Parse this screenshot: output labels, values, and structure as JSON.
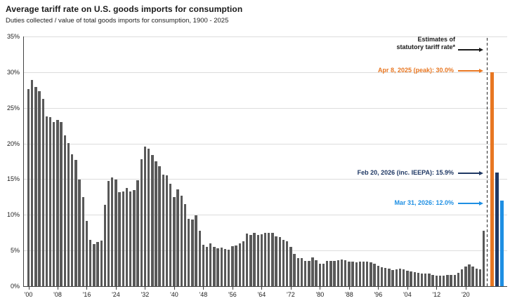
{
  "header": {
    "title": "Average tariff rate on U.S. goods imports for consumption",
    "subtitle": "Duties collected / value of total goods imports for consumption, 1900 - 2025"
  },
  "annotations": {
    "estimates_line1": "Estimates of",
    "estimates_line2": "statutory tariff rate*"
  },
  "colors": {
    "bar_gray": "#595959",
    "estimate_orange": "#E87722",
    "estimate_navy": "#1F3864",
    "estimate_blue": "#1E8FE3",
    "gridline": "#dcdcdc",
    "axis": "#444444"
  },
  "chart_data": {
    "type": "bar",
    "title": "Average tariff rate on U.S. goods imports for consumption",
    "subtitle": "Duties collected / value of total goods imports for consumption, 1900 - 2025",
    "unit": "%",
    "ylim": [
      0,
      35
    ],
    "grid": true,
    "start_year": 1900,
    "end_year": 2025,
    "y_ticks": [
      "0%",
      "5%",
      "10%",
      "15%",
      "20%",
      "25%",
      "30%",
      "35%"
    ],
    "x_tick_labels": [
      "'00",
      "'08",
      "'16",
      "'24",
      "'32",
      "'40",
      "'48",
      "'56",
      "'64",
      "'72",
      "'80",
      "'88",
      "'96",
      "'04",
      "'12",
      "'20"
    ],
    "x_tick_step_years": 8,
    "values": [
      27.6,
      28.9,
      27.9,
      27.3,
      26.3,
      23.8,
      23.7,
      23.0,
      23.3,
      23.0,
      21.1,
      20.1,
      18.5,
      17.7,
      14.9,
      12.5,
      9.1,
      6.5,
      5.9,
      6.2,
      6.4,
      11.4,
      14.7,
      15.2,
      14.9,
      13.2,
      13.3,
      13.8,
      13.3,
      13.5,
      14.8,
      17.8,
      19.6,
      19.3,
      18.4,
      17.5,
      16.8,
      15.6,
      15.5,
      14.4,
      12.5,
      13.6,
      12.7,
      11.5,
      9.4,
      9.3,
      9.9,
      7.8,
      5.8,
      5.5,
      6.0,
      5.5,
      5.3,
      5.4,
      5.2,
      5.1,
      5.6,
      5.7,
      6.0,
      6.3,
      7.4,
      7.2,
      7.5,
      7.2,
      7.3,
      7.5,
      7.5,
      7.5,
      7.0,
      6.9,
      6.5,
      6.3,
      5.5,
      4.5,
      3.9,
      3.9,
      3.5,
      3.5,
      4.0,
      3.6,
      3.1,
      3.1,
      3.5,
      3.5,
      3.5,
      3.6,
      3.7,
      3.6,
      3.4,
      3.4,
      3.3,
      3.4,
      3.4,
      3.4,
      3.3,
      3.1,
      2.9,
      2.7,
      2.6,
      2.5,
      2.3,
      2.4,
      2.5,
      2.4,
      2.2,
      2.1,
      2.0,
      1.9,
      1.8,
      1.8,
      1.8,
      1.6,
      1.5,
      1.5,
      1.5,
      1.6,
      1.6,
      1.6,
      1.9,
      2.4,
      2.8,
      3.0,
      2.8,
      2.5,
      2.4,
      7.8
    ],
    "estimates_note": "Estimates of statutory tariff rate*",
    "estimates": [
      {
        "label": "Apr 8, 2025 (peak): 30.0%",
        "value": 30.0,
        "color": "#E87722"
      },
      {
        "label": "Feb 20, 2026 (inc. IEEPA): 15.9%",
        "value": 15.9,
        "color": "#1F3864"
      },
      {
        "label": "Mar 31, 2026: 12.0%",
        "value": 12.0,
        "color": "#1E8FE3"
      }
    ]
  }
}
